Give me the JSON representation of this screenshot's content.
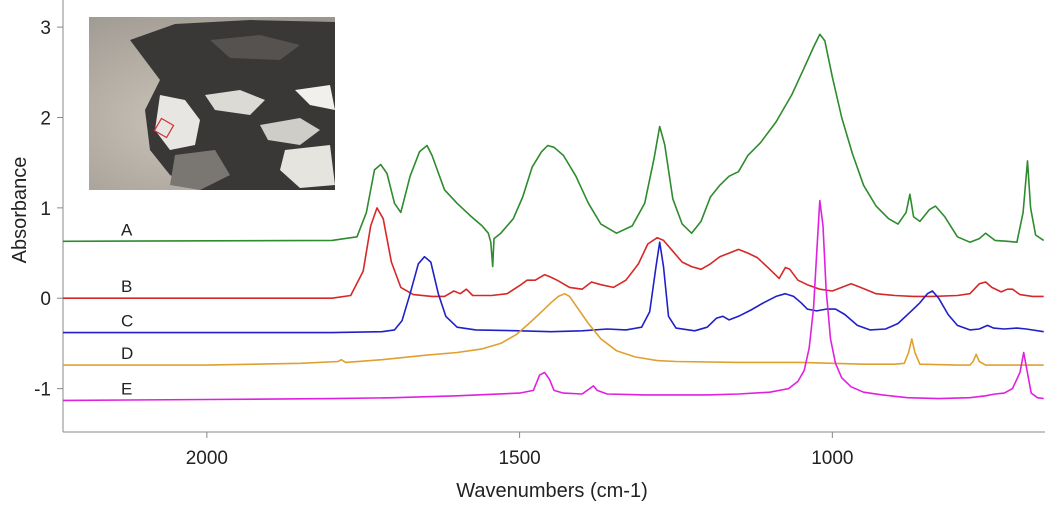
{
  "chart_data": {
    "type": "line",
    "xlabel": "Wavenumbers (cm-1)",
    "ylabel": "Absorbance",
    "xlim": [
      2230,
      660
    ],
    "ylim": [
      -1.48,
      3.3
    ],
    "x_ticks": [
      "2000",
      "1500",
      "1000"
    ],
    "y_ticks": [
      "-1",
      "0",
      "1",
      "2",
      "3"
    ],
    "inset": "photomicrograph-of-sample",
    "series": [
      {
        "name": "A",
        "color": "#2e8b2e",
        "points": [
          [
            2230,
            0.63
          ],
          [
            1800,
            0.64
          ],
          [
            1760,
            0.68
          ],
          [
            1745,
            0.95
          ],
          [
            1732,
            1.42
          ],
          [
            1722,
            1.48
          ],
          [
            1712,
            1.38
          ],
          [
            1700,
            1.05
          ],
          [
            1690,
            0.95
          ],
          [
            1675,
            1.35
          ],
          [
            1660,
            1.62
          ],
          [
            1648,
            1.69
          ],
          [
            1640,
            1.58
          ],
          [
            1620,
            1.2
          ],
          [
            1600,
            1.05
          ],
          [
            1580,
            0.92
          ],
          [
            1560,
            0.8
          ],
          [
            1550,
            0.72
          ],
          [
            1546,
            0.62
          ],
          [
            1543,
            0.35
          ],
          [
            1541,
            0.66
          ],
          [
            1530,
            0.72
          ],
          [
            1510,
            0.88
          ],
          [
            1495,
            1.12
          ],
          [
            1480,
            1.45
          ],
          [
            1465,
            1.62
          ],
          [
            1455,
            1.69
          ],
          [
            1445,
            1.67
          ],
          [
            1430,
            1.58
          ],
          [
            1410,
            1.35
          ],
          [
            1390,
            1.05
          ],
          [
            1370,
            0.82
          ],
          [
            1345,
            0.72
          ],
          [
            1320,
            0.8
          ],
          [
            1300,
            1.05
          ],
          [
            1285,
            1.55
          ],
          [
            1276,
            1.9
          ],
          [
            1268,
            1.7
          ],
          [
            1255,
            1.1
          ],
          [
            1240,
            0.82
          ],
          [
            1225,
            0.72
          ],
          [
            1210,
            0.85
          ],
          [
            1195,
            1.12
          ],
          [
            1180,
            1.25
          ],
          [
            1165,
            1.35
          ],
          [
            1150,
            1.4
          ],
          [
            1135,
            1.58
          ],
          [
            1115,
            1.72
          ],
          [
            1090,
            1.95
          ],
          [
            1065,
            2.25
          ],
          [
            1045,
            2.55
          ],
          [
            1030,
            2.78
          ],
          [
            1020,
            2.92
          ],
          [
            1012,
            2.85
          ],
          [
            1000,
            2.45
          ],
          [
            985,
            2.0
          ],
          [
            968,
            1.6
          ],
          [
            950,
            1.25
          ],
          [
            930,
            1.02
          ],
          [
            910,
            0.88
          ],
          [
            895,
            0.82
          ],
          [
            882,
            0.95
          ],
          [
            876,
            1.15
          ],
          [
            870,
            0.9
          ],
          [
            860,
            0.85
          ],
          [
            845,
            0.98
          ],
          [
            835,
            1.02
          ],
          [
            820,
            0.9
          ],
          [
            800,
            0.68
          ],
          [
            780,
            0.62
          ],
          [
            765,
            0.66
          ],
          [
            755,
            0.72
          ],
          [
            740,
            0.64
          ],
          [
            720,
            0.63
          ],
          [
            705,
            0.62
          ],
          [
            695,
            0.95
          ],
          [
            688,
            1.52
          ],
          [
            683,
            1.0
          ],
          [
            675,
            0.7
          ],
          [
            662,
            0.64
          ]
        ]
      },
      {
        "name": "B",
        "color": "#d62828",
        "points": [
          [
            2230,
            0.0
          ],
          [
            1800,
            0.0
          ],
          [
            1770,
            0.03
          ],
          [
            1750,
            0.3
          ],
          [
            1738,
            0.8
          ],
          [
            1728,
            1.0
          ],
          [
            1718,
            0.88
          ],
          [
            1705,
            0.4
          ],
          [
            1690,
            0.12
          ],
          [
            1670,
            0.04
          ],
          [
            1640,
            0.02
          ],
          [
            1620,
            0.02
          ],
          [
            1605,
            0.08
          ],
          [
            1595,
            0.05
          ],
          [
            1585,
            0.1
          ],
          [
            1575,
            0.03
          ],
          [
            1545,
            0.03
          ],
          [
            1520,
            0.05
          ],
          [
            1500,
            0.14
          ],
          [
            1488,
            0.2
          ],
          [
            1475,
            0.2
          ],
          [
            1460,
            0.26
          ],
          [
            1452,
            0.24
          ],
          [
            1440,
            0.2
          ],
          [
            1420,
            0.12
          ],
          [
            1400,
            0.1
          ],
          [
            1385,
            0.18
          ],
          [
            1370,
            0.15
          ],
          [
            1350,
            0.12
          ],
          [
            1330,
            0.2
          ],
          [
            1310,
            0.38
          ],
          [
            1295,
            0.6
          ],
          [
            1280,
            0.67
          ],
          [
            1270,
            0.64
          ],
          [
            1255,
            0.52
          ],
          [
            1240,
            0.4
          ],
          [
            1225,
            0.35
          ],
          [
            1210,
            0.32
          ],
          [
            1195,
            0.38
          ],
          [
            1180,
            0.46
          ],
          [
            1165,
            0.5
          ],
          [
            1150,
            0.54
          ],
          [
            1135,
            0.5
          ],
          [
            1120,
            0.45
          ],
          [
            1100,
            0.32
          ],
          [
            1085,
            0.22
          ],
          [
            1075,
            0.34
          ],
          [
            1068,
            0.32
          ],
          [
            1055,
            0.2
          ],
          [
            1040,
            0.15
          ],
          [
            1020,
            0.1
          ],
          [
            1000,
            0.08
          ],
          [
            985,
            0.12
          ],
          [
            970,
            0.16
          ],
          [
            955,
            0.12
          ],
          [
            930,
            0.05
          ],
          [
            900,
            0.03
          ],
          [
            870,
            0.02
          ],
          [
            840,
            0.02
          ],
          [
            800,
            0.03
          ],
          [
            780,
            0.05
          ],
          [
            765,
            0.16
          ],
          [
            755,
            0.18
          ],
          [
            745,
            0.12
          ],
          [
            730,
            0.07
          ],
          [
            720,
            0.1
          ],
          [
            712,
            0.1
          ],
          [
            700,
            0.04
          ],
          [
            680,
            0.02
          ],
          [
            662,
            0.02
          ]
        ]
      },
      {
        "name": "C",
        "color": "#2020c8",
        "points": [
          [
            2230,
            -0.38
          ],
          [
            1800,
            -0.38
          ],
          [
            1720,
            -0.37
          ],
          [
            1700,
            -0.35
          ],
          [
            1688,
            -0.25
          ],
          [
            1675,
            0.05
          ],
          [
            1662,
            0.38
          ],
          [
            1652,
            0.46
          ],
          [
            1642,
            0.4
          ],
          [
            1630,
            0.05
          ],
          [
            1618,
            -0.2
          ],
          [
            1600,
            -0.32
          ],
          [
            1570,
            -0.35
          ],
          [
            1500,
            -0.36
          ],
          [
            1450,
            -0.37
          ],
          [
            1400,
            -0.36
          ],
          [
            1360,
            -0.34
          ],
          [
            1330,
            -0.35
          ],
          [
            1305,
            -0.32
          ],
          [
            1292,
            -0.15
          ],
          [
            1282,
            0.35
          ],
          [
            1276,
            0.62
          ],
          [
            1270,
            0.35
          ],
          [
            1262,
            -0.2
          ],
          [
            1250,
            -0.33
          ],
          [
            1220,
            -0.36
          ],
          [
            1200,
            -0.32
          ],
          [
            1185,
            -0.22
          ],
          [
            1175,
            -0.2
          ],
          [
            1165,
            -0.24
          ],
          [
            1150,
            -0.2
          ],
          [
            1130,
            -0.13
          ],
          [
            1110,
            -0.05
          ],
          [
            1090,
            0.02
          ],
          [
            1075,
            0.05
          ],
          [
            1062,
            0.02
          ],
          [
            1050,
            -0.05
          ],
          [
            1040,
            -0.12
          ],
          [
            1025,
            -0.14
          ],
          [
            1010,
            -0.12
          ],
          [
            995,
            -0.12
          ],
          [
            980,
            -0.18
          ],
          [
            960,
            -0.3
          ],
          [
            940,
            -0.35
          ],
          [
            915,
            -0.34
          ],
          [
            895,
            -0.28
          ],
          [
            875,
            -0.15
          ],
          [
            860,
            -0.05
          ],
          [
            848,
            0.05
          ],
          [
            840,
            0.08
          ],
          [
            830,
            0.0
          ],
          [
            815,
            -0.18
          ],
          [
            800,
            -0.3
          ],
          [
            780,
            -0.35
          ],
          [
            765,
            -0.34
          ],
          [
            752,
            -0.3
          ],
          [
            742,
            -0.33
          ],
          [
            725,
            -0.34
          ],
          [
            705,
            -0.33
          ],
          [
            690,
            -0.34
          ],
          [
            662,
            -0.37
          ]
        ]
      },
      {
        "name": "D",
        "color": "#e0a030",
        "points": [
          [
            2230,
            -0.74
          ],
          [
            2000,
            -0.74
          ],
          [
            1850,
            -0.72
          ],
          [
            1790,
            -0.7
          ],
          [
            1785,
            -0.68
          ],
          [
            1778,
            -0.71
          ],
          [
            1720,
            -0.68
          ],
          [
            1650,
            -0.63
          ],
          [
            1600,
            -0.6
          ],
          [
            1560,
            -0.56
          ],
          [
            1530,
            -0.5
          ],
          [
            1505,
            -0.4
          ],
          [
            1485,
            -0.28
          ],
          [
            1465,
            -0.15
          ],
          [
            1450,
            -0.05
          ],
          [
            1438,
            0.02
          ],
          [
            1428,
            0.05
          ],
          [
            1420,
            0.02
          ],
          [
            1408,
            -0.1
          ],
          [
            1390,
            -0.28
          ],
          [
            1370,
            -0.45
          ],
          [
            1345,
            -0.58
          ],
          [
            1315,
            -0.65
          ],
          [
            1280,
            -0.69
          ],
          [
            1250,
            -0.7
          ],
          [
            1150,
            -0.71
          ],
          [
            1050,
            -0.71
          ],
          [
            1000,
            -0.72
          ],
          [
            950,
            -0.73
          ],
          [
            900,
            -0.73
          ],
          [
            885,
            -0.72
          ],
          [
            878,
            -0.6
          ],
          [
            873,
            -0.45
          ],
          [
            868,
            -0.6
          ],
          [
            860,
            -0.73
          ],
          [
            800,
            -0.74
          ],
          [
            790,
            -0.74
          ],
          [
            780,
            -0.74
          ],
          [
            775,
            -0.7
          ],
          [
            770,
            -0.62
          ],
          [
            765,
            -0.7
          ],
          [
            755,
            -0.74
          ],
          [
            700,
            -0.74
          ],
          [
            662,
            -0.74
          ]
        ]
      },
      {
        "name": "E",
        "color": "#e020e0",
        "points": [
          [
            2230,
            -1.13
          ],
          [
            2000,
            -1.12
          ],
          [
            1800,
            -1.11
          ],
          [
            1700,
            -1.1
          ],
          [
            1600,
            -1.08
          ],
          [
            1500,
            -1.05
          ],
          [
            1478,
            -1.02
          ],
          [
            1468,
            -0.85
          ],
          [
            1460,
            -0.82
          ],
          [
            1452,
            -0.9
          ],
          [
            1445,
            -1.02
          ],
          [
            1430,
            -1.05
          ],
          [
            1400,
            -1.06
          ],
          [
            1388,
            -1.0
          ],
          [
            1382,
            -0.97
          ],
          [
            1376,
            -1.02
          ],
          [
            1360,
            -1.06
          ],
          [
            1300,
            -1.07
          ],
          [
            1250,
            -1.07
          ],
          [
            1200,
            -1.07
          ],
          [
            1150,
            -1.06
          ],
          [
            1100,
            -1.04
          ],
          [
            1070,
            -1.0
          ],
          [
            1055,
            -0.92
          ],
          [
            1045,
            -0.8
          ],
          [
            1037,
            -0.55
          ],
          [
            1030,
            -0.1
          ],
          [
            1025,
            0.5
          ],
          [
            1020,
            1.08
          ],
          [
            1015,
            0.8
          ],
          [
            1010,
            0.1
          ],
          [
            1003,
            -0.45
          ],
          [
            995,
            -0.72
          ],
          [
            985,
            -0.88
          ],
          [
            970,
            -0.98
          ],
          [
            950,
            -1.04
          ],
          [
            920,
            -1.07
          ],
          [
            880,
            -1.1
          ],
          [
            830,
            -1.11
          ],
          [
            780,
            -1.1
          ],
          [
            755,
            -1.08
          ],
          [
            740,
            -1.06
          ],
          [
            725,
            -1.05
          ],
          [
            712,
            -1.0
          ],
          [
            700,
            -0.82
          ],
          [
            694,
            -0.6
          ],
          [
            690,
            -0.75
          ],
          [
            682,
            -1.05
          ],
          [
            672,
            -1.1
          ],
          [
            662,
            -1.11
          ]
        ]
      }
    ]
  }
}
